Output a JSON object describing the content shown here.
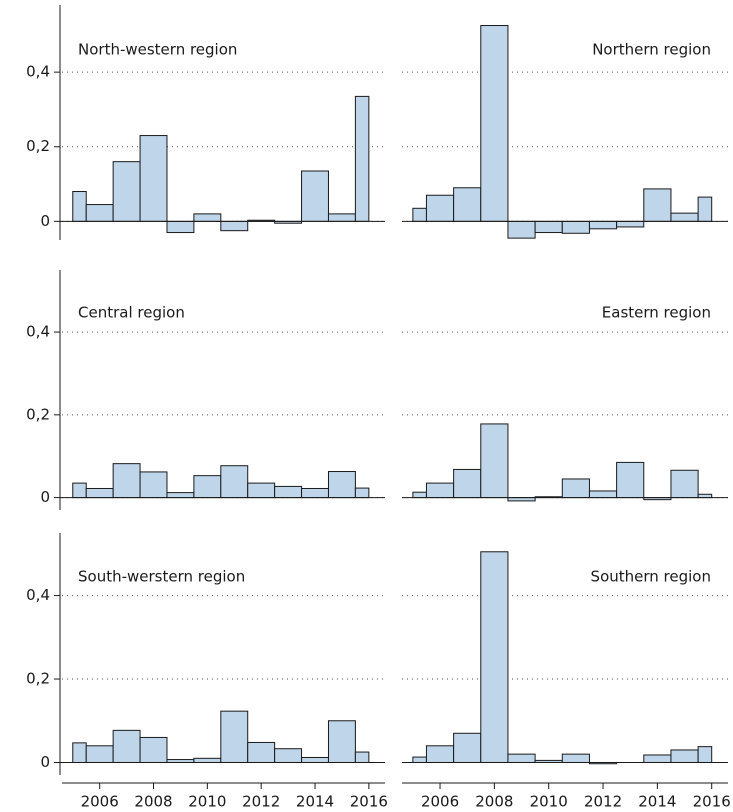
{
  "chart_data": [
    {
      "type": "step",
      "title": "North-western region",
      "color": "#bfd5ea",
      "x": [
        2005,
        2006,
        2007,
        2008,
        2009,
        2010,
        2011,
        2012,
        2013,
        2014,
        2015,
        2016
      ],
      "values": [
        0.08,
        0.045,
        0.16,
        0.23,
        -0.03,
        0.02,
        -0.025,
        0.003,
        -0.005,
        0.135,
        0.02,
        0.335
      ],
      "xlim": [
        2004.6,
        2016.6
      ],
      "ylim": [
        -0.05,
        0.58
      ],
      "yticks": [
        {
          "value": 0,
          "label": "0"
        },
        {
          "value": 0.2,
          "label": "0,2"
        },
        {
          "value": 0.4,
          "label": "0,4"
        }
      ],
      "grid": true
    },
    {
      "type": "step",
      "title": "Northern region",
      "color": "#bfd5ea",
      "x": [
        2005,
        2006,
        2007,
        2008,
        2009,
        2010,
        2011,
        2012,
        2013,
        2014,
        2015,
        2016
      ],
      "values": [
        0.035,
        0.07,
        0.09,
        0.525,
        -0.045,
        -0.03,
        -0.032,
        -0.02,
        -0.015,
        0.087,
        0.022,
        0.065
      ],
      "xlim": [
        2004.6,
        2016.6
      ],
      "ylim": [
        -0.05,
        0.58
      ],
      "yticks": [
        0,
        0.2,
        0.4
      ],
      "grid": true
    },
    {
      "type": "step",
      "title": "Central region",
      "color": "#bfd5ea",
      "x": [
        2005,
        2006,
        2007,
        2008,
        2009,
        2010,
        2011,
        2012,
        2013,
        2014,
        2015,
        2016
      ],
      "values": [
        0.035,
        0.022,
        0.082,
        0.062,
        0.012,
        0.053,
        0.077,
        0.035,
        0.027,
        0.022,
        0.063,
        0.023
      ],
      "xlim": [
        2004.6,
        2016.6
      ],
      "ylim": [
        -0.03,
        0.55
      ],
      "yticks": [
        {
          "value": 0,
          "label": "0"
        },
        {
          "value": 0.2,
          "label": "0,2"
        },
        {
          "value": 0.4,
          "label": "0,4"
        }
      ],
      "grid": true
    },
    {
      "type": "step",
      "title": "Eastern region",
      "color": "#bfd5ea",
      "x": [
        2005,
        2006,
        2007,
        2008,
        2009,
        2010,
        2011,
        2012,
        2013,
        2014,
        2015,
        2016
      ],
      "values": [
        0.013,
        0.035,
        0.068,
        0.178,
        -0.008,
        0.002,
        0.045,
        0.016,
        0.085,
        -0.005,
        0.066,
        0.008
      ],
      "xlim": [
        2004.6,
        2016.6
      ],
      "ylim": [
        -0.03,
        0.55
      ],
      "yticks": [
        0,
        0.2,
        0.4
      ],
      "grid": true
    },
    {
      "type": "step",
      "title": "South-werstern region",
      "color": "#bfd5ea",
      "x": [
        2005,
        2006,
        2007,
        2008,
        2009,
        2010,
        2011,
        2012,
        2013,
        2014,
        2015,
        2016
      ],
      "values": [
        0.047,
        0.04,
        0.077,
        0.06,
        0.007,
        0.01,
        0.123,
        0.048,
        0.033,
        0.012,
        0.1,
        0.025
      ],
      "xlim": [
        2004.6,
        2016.6
      ],
      "ylim": [
        -0.03,
        0.55
      ],
      "yticks": [
        {
          "value": 0,
          "label": "0"
        },
        {
          "value": 0.2,
          "label": "0,2"
        },
        {
          "value": 0.4,
          "label": "0,4"
        }
      ],
      "xticks": [
        2006,
        2008,
        2010,
        2012,
        2014,
        2016
      ],
      "grid": true
    },
    {
      "type": "step",
      "title": "Southern region",
      "color": "#bfd5ea",
      "x": [
        2005,
        2006,
        2007,
        2008,
        2009,
        2010,
        2011,
        2012,
        2013,
        2014,
        2015,
        2016
      ],
      "values": [
        0.013,
        0.04,
        0.07,
        0.505,
        0.02,
        0.005,
        0.02,
        -0.003,
        0.0,
        0.018,
        0.03,
        0.038
      ],
      "xlim": [
        2004.6,
        2016.6
      ],
      "ylim": [
        -0.03,
        0.55
      ],
      "yticks": [
        0,
        0.2,
        0.4
      ],
      "xticks": [
        2006,
        2008,
        2010,
        2012,
        2014,
        2016
      ],
      "grid": true
    }
  ]
}
